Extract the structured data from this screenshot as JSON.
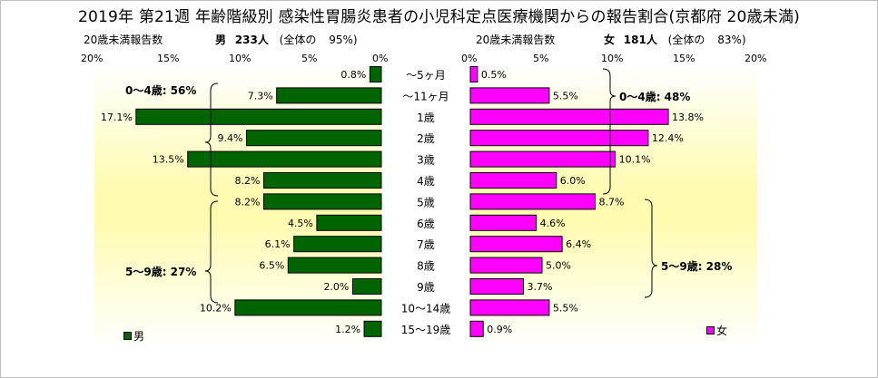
{
  "title": "2019年 第21週 年齢階級別 感染性胃腸炎患者の小児科定点医療機関からの報告割合(京都府 20歳未満)",
  "male_panel": {
    "sublabel": "20歳未満報告数",
    "sex": "男",
    "count": "233人",
    "total_label": "(全体の",
    "total_pct": "95%)",
    "ticks": [
      "20%",
      "15%",
      "10%",
      "5%",
      "0%"
    ],
    "legend": "男",
    "group1": "0～4歳: 56%",
    "group2": "5～9歳: 27%"
  },
  "female_panel": {
    "sublabel": "20歳未満報告数",
    "sex": "女",
    "count": "181人",
    "total_label": "(全体の",
    "total_pct": "83%)",
    "ticks": [
      "0%",
      "5%",
      "10%",
      "15%",
      "20%"
    ],
    "legend": "女",
    "group1": "0～4歳: 48%",
    "group2": "5～9歳: 28%"
  },
  "colors": {
    "male": "#006400",
    "female": "#ff00ff",
    "bg_yellow": "#fffccc"
  },
  "chart_data": {
    "type": "bar",
    "title": "2019年 第21週 年齢階級別 感染性胃腸炎患者の小児科定点医療機関からの報告割合(京都府 20歳未満)",
    "categories": [
      "～5ヶ月",
      "～11ヶ月",
      "1歳",
      "2歳",
      "3歳",
      "4歳",
      "5歳",
      "6歳",
      "7歳",
      "8歳",
      "9歳",
      "10～14歳",
      "15～19歳"
    ],
    "series": [
      {
        "name": "男",
        "values": [
          0.8,
          7.3,
          17.1,
          9.4,
          13.5,
          8.2,
          8.2,
          4.5,
          6.1,
          6.5,
          2.0,
          10.2,
          1.2
        ]
      },
      {
        "name": "女",
        "values": [
          0.5,
          5.5,
          13.8,
          12.4,
          10.1,
          6.0,
          8.7,
          4.6,
          6.4,
          5.0,
          3.7,
          5.5,
          0.9
        ]
      }
    ],
    "xlim": [
      0,
      20
    ],
    "grid": false,
    "legend": "bottom-left / bottom-right"
  }
}
